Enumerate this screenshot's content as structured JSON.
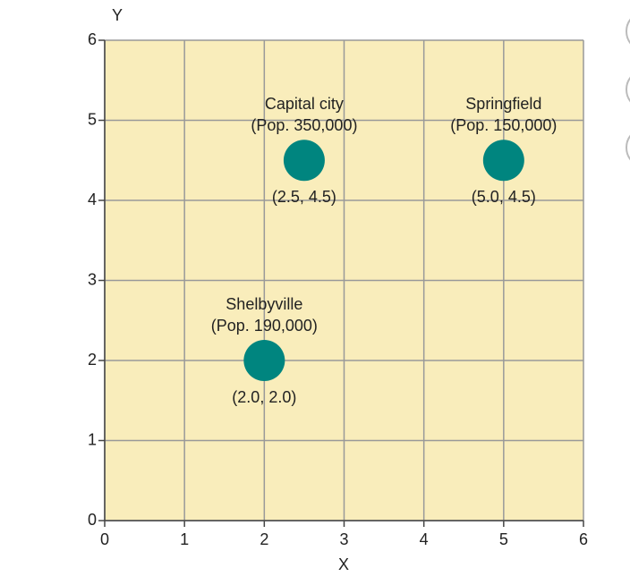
{
  "chart_data": {
    "type": "scatter",
    "x_label": "X",
    "y_label": "Y",
    "x": [
      2.5,
      5.0,
      2.0
    ],
    "y": [
      4.5,
      4.5,
      2.0
    ],
    "point_names": [
      "Capital city",
      "Springfield",
      "Shelbyville"
    ],
    "point_subtitles": [
      "(Pop. 350,000)",
      "(Pop. 150,000)",
      "(Pop. 190,000)"
    ],
    "value_labels": [
      "(2.5, 4.5)",
      "(5.0, 4.5)",
      "(2.0, 2.0)"
    ],
    "color": "#00857f",
    "background": "#f9edbb",
    "xlim": [
      0,
      6
    ],
    "ylim": [
      0,
      6
    ],
    "xticks": [
      0,
      1,
      2,
      3,
      4,
      5,
      6
    ],
    "yticks": [
      0,
      1,
      2,
      3,
      4,
      5,
      6
    ],
    "grid": true
  }
}
